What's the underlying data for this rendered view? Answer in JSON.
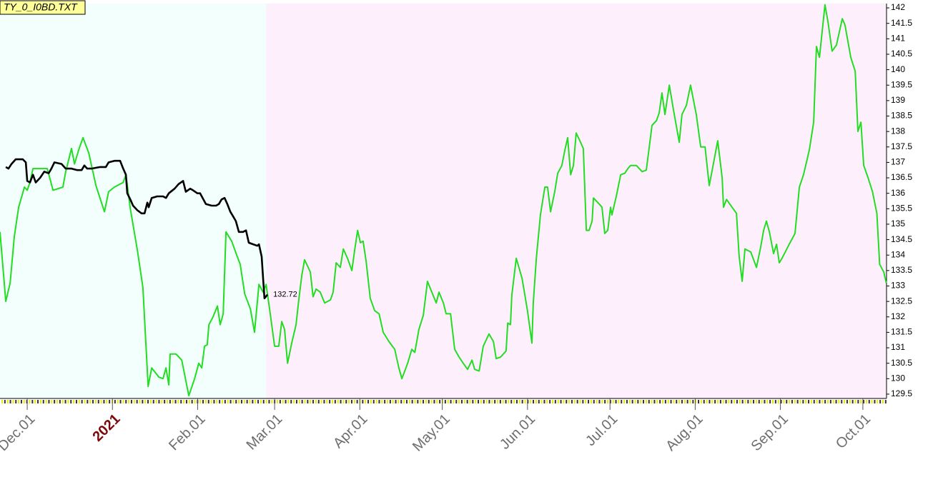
{
  "chart_data": {
    "type": "line",
    "title": "TY_0_I0BD.TXT",
    "xlim": [
      -9.9,
      312.6
    ],
    "ylim": [
      129.36,
      142.14
    ],
    "yticks": [
      129.5,
      130,
      130.5,
      131,
      131.5,
      132,
      132.5,
      133,
      133.5,
      134,
      134.5,
      135,
      135.5,
      136,
      136.5,
      137,
      137.5,
      138,
      138.5,
      139,
      139.5,
      140,
      140.5,
      141,
      141.5,
      142
    ],
    "xticks": [
      {
        "value": 0,
        "label": "Dec.01"
      },
      {
        "value": 31,
        "label": "2021"
      },
      {
        "value": 62,
        "label": "Feb.01"
      },
      {
        "value": 90,
        "label": "Mar.01"
      },
      {
        "value": 121,
        "label": "Apr.01"
      },
      {
        "value": 151,
        "label": "May.01"
      },
      {
        "value": 182,
        "label": "Jun.01"
      },
      {
        "value": 212,
        "label": "Jul.01"
      },
      {
        "value": 243,
        "label": "Aug.01"
      },
      {
        "value": 274,
        "label": "Sep.01"
      },
      {
        "value": 304,
        "label": "Oct.01"
      }
    ],
    "regions": [
      {
        "x": [
          -9.9,
          86.9
        ],
        "color": "#f2fffd"
      },
      {
        "x": [
          86.9,
          312.6
        ],
        "color": "#fdf0fc"
      }
    ],
    "series": [
      {
        "color": "#22dd22",
        "x": [
          -9.9,
          -7.8,
          -6.2,
          -4.7,
          -3.1,
          -1.0,
          0,
          1,
          2.1,
          5.7,
          7.3,
          9.4,
          13,
          14,
          16.1,
          17.2,
          18.7,
          20.3,
          22.4,
          25,
          28.1,
          29.6,
          31.7,
          34.9,
          35.9,
          37.5,
          40.1,
          42.1,
          44,
          45.3,
          47.9,
          49.4,
          50.5,
          51.5,
          52,
          54.1,
          56.2,
          58.8,
          60.9,
          62.4,
          63.5,
          64.5,
          65.5,
          66.1,
          67.6,
          69.2,
          70.2,
          71.3,
          72.3,
          74.4,
          76,
          77.5,
          79.1,
          81.2,
          82.7,
          84.3,
          85.8,
          86.9,
          88.4,
          90,
          91.5,
          92.6,
          93.6,
          94.7,
          96.2,
          97.8,
          98.8,
          99.9,
          100.9,
          103,
          104,
          105.1,
          106.6,
          108.2,
          110.3,
          111.3,
          112.4,
          113.9,
          115,
          116.5,
          118.1,
          119.1,
          120.2,
          121.2,
          122.2,
          123.3,
          124.8,
          126.4,
          128,
          129.5,
          131.6,
          133.7,
          135.2,
          136.3,
          138.4,
          139.9,
          141,
          142.5,
          144.1,
          145.6,
          147.2,
          148.8,
          149.8,
          151.4,
          152.4,
          154,
          155.5,
          157.1,
          158.6,
          160.2,
          161.8,
          162.8,
          164.4,
          165.9,
          168,
          169.6,
          170.6,
          172.2,
          174.2,
          174.8,
          175.8,
          176.3,
          177.9,
          180,
          182,
          183.6,
          184.1,
          185.2,
          186.7,
          188.3,
          189.3,
          190.4,
          191.9,
          193,
          194.5,
          195.6,
          196.6,
          197.7,
          198.7,
          199.7,
          200.8,
          202.3,
          203.4,
          204.4,
          205.5,
          206,
          208.1,
          209.1,
          210.1,
          211.2,
          212.2,
          212.7,
          214.3,
          215.9,
          217.4,
          218.5,
          219.5,
          221.6,
          223.7,
          225.2,
          227.3,
          228.9,
          229.9,
          230.9,
          232,
          233.6,
          235.1,
          237.2,
          238.2,
          239.8,
          241.3,
          243.4,
          245,
          246.6,
          248.1,
          249.2,
          251.2,
          252.8,
          253.3,
          254.4,
          258,
          259,
          260.1,
          261.1,
          263.2,
          265.3,
          266.8,
          267.9,
          268.9,
          270,
          271.5,
          272.6,
          273.6,
          274.6,
          277.2,
          279.3,
          280.9,
          282.4,
          284.5,
          286.1,
          287.1,
          288.2,
          290.2,
          291.3,
          292.8,
          294.4,
          296.5,
          297.5,
          299.6,
          301.2,
          302.2,
          303.3,
          304.3,
          305.9,
          307.5,
          309.1,
          310.1,
          311.6,
          312.5
        ],
        "values": [
          134.75,
          132.5,
          133.1,
          134.6,
          135.55,
          136.2,
          136.1,
          136.35,
          136.8,
          136.8,
          136.8,
          136.1,
          136.2,
          136.7,
          137.45,
          136.95,
          137.4,
          137.8,
          137.3,
          136.25,
          135.4,
          136.05,
          136.2,
          136.35,
          136.6,
          135.5,
          134.15,
          132.95,
          129.75,
          130.35,
          130.05,
          130.0,
          130.35,
          129.8,
          130.8,
          130.8,
          130.6,
          129.45,
          130.0,
          130.5,
          130.35,
          131.05,
          131.1,
          131.75,
          132.0,
          132.35,
          131.75,
          132.1,
          134.75,
          134.45,
          134.05,
          133.7,
          132.75,
          132.25,
          131.5,
          133.05,
          132.8,
          133.05,
          132.1,
          131.05,
          131.05,
          131.85,
          131.6,
          130.5,
          131.15,
          131.75,
          132.55,
          133.35,
          133.85,
          133.45,
          132.65,
          132.9,
          132.8,
          132.45,
          132.55,
          132.8,
          133.75,
          133.6,
          134.2,
          133.9,
          133.5,
          134.15,
          134.8,
          134.4,
          134.45,
          133.8,
          132.6,
          132.2,
          132.1,
          131.5,
          131.2,
          130.95,
          130.35,
          130.0,
          130.5,
          130.95,
          130.85,
          131.6,
          132.05,
          133.15,
          132.8,
          132.45,
          132.8,
          132.45,
          132.1,
          132.1,
          130.95,
          130.7,
          130.5,
          130.3,
          130.6,
          130.3,
          130.25,
          131.05,
          131.45,
          131.2,
          130.65,
          130.7,
          130.9,
          131.8,
          131.75,
          132.7,
          133.9,
          133.25,
          132.2,
          131.15,
          132.45,
          133.9,
          135.3,
          136.2,
          136.2,
          135.4,
          136.05,
          136.65,
          136.9,
          137.4,
          137.8,
          136.6,
          136.9,
          137.95,
          137.75,
          137.45,
          134.8,
          134.8,
          135.1,
          135.85,
          135.65,
          135.55,
          134.7,
          134.8,
          135.55,
          135.3,
          135.9,
          136.6,
          136.65,
          136.8,
          136.9,
          136.9,
          136.7,
          136.75,
          138.2,
          138.35,
          138.6,
          139.25,
          138.55,
          139.5,
          138.7,
          137.65,
          138.55,
          138.85,
          139.5,
          138.55,
          137.5,
          137.5,
          136.25,
          136.75,
          137.7,
          136.5,
          135.55,
          135.8,
          135.35,
          133.95,
          133.15,
          134.2,
          134.1,
          133.6,
          134.25,
          134.8,
          135.1,
          134.75,
          134.05,
          134.35,
          133.75,
          133.9,
          134.35,
          134.7,
          136.2,
          136.6,
          137.4,
          138.3,
          140.75,
          140.4,
          142.1,
          141.55,
          140.6,
          140.8,
          141.65,
          141.45,
          140.4,
          139.95,
          138.0,
          138.3,
          136.9,
          136.5,
          136.05,
          135.35,
          133.7,
          133.45,
          133.1
        ]
      },
      {
        "color": "#000000",
        "x": [
          -7.8,
          -6.8,
          -5.7,
          -4.2,
          -1.6,
          -0.5,
          0,
          1,
          2.1,
          3.1,
          4.7,
          6.2,
          7.8,
          8.8,
          9.9,
          12.5,
          14,
          16.1,
          18.2,
          19.8,
          20.8,
          21.8,
          23.4,
          26.5,
          28.6,
          29.6,
          31.7,
          33.8,
          34.9,
          35.9,
          36.4,
          37.5,
          38.5,
          40.1,
          41.6,
          42.7,
          43.7,
          44.2,
          45.3,
          47.3,
          49.4,
          50.5,
          51.5,
          53.6,
          55.1,
          56.7,
          57.7,
          59.3,
          60.3,
          61.9,
          62.9,
          65,
          67.1,
          68.7,
          69.7,
          70.7,
          71.8,
          72.8,
          73.9,
          74.9,
          75.9,
          77,
          78.5,
          79.6,
          80.6,
          82.2,
          83.7,
          84.3,
          85.3,
          85.8,
          86.3,
          87.4
        ],
        "values": [
          136.85,
          136.8,
          136.95,
          137.1,
          137.1,
          137.0,
          136.4,
          136.35,
          136.6,
          136.35,
          136.5,
          136.7,
          136.65,
          136.8,
          137.0,
          136.95,
          136.8,
          136.8,
          136.75,
          136.75,
          136.9,
          136.8,
          136.8,
          136.85,
          136.85,
          137.0,
          137.05,
          137.05,
          136.8,
          136.6,
          136.0,
          135.8,
          135.6,
          135.45,
          135.35,
          135.35,
          135.7,
          135.55,
          135.85,
          135.9,
          135.9,
          135.85,
          136.0,
          136.15,
          136.3,
          136.4,
          136.05,
          136.15,
          136.1,
          136.0,
          136.0,
          135.65,
          135.6,
          135.6,
          135.65,
          135.8,
          135.85,
          135.65,
          135.4,
          135.25,
          135.1,
          134.75,
          134.75,
          134.8,
          134.4,
          134.35,
          134.3,
          134.35,
          133.95,
          133.25,
          132.6,
          132.72
        ]
      }
    ]
  }
}
